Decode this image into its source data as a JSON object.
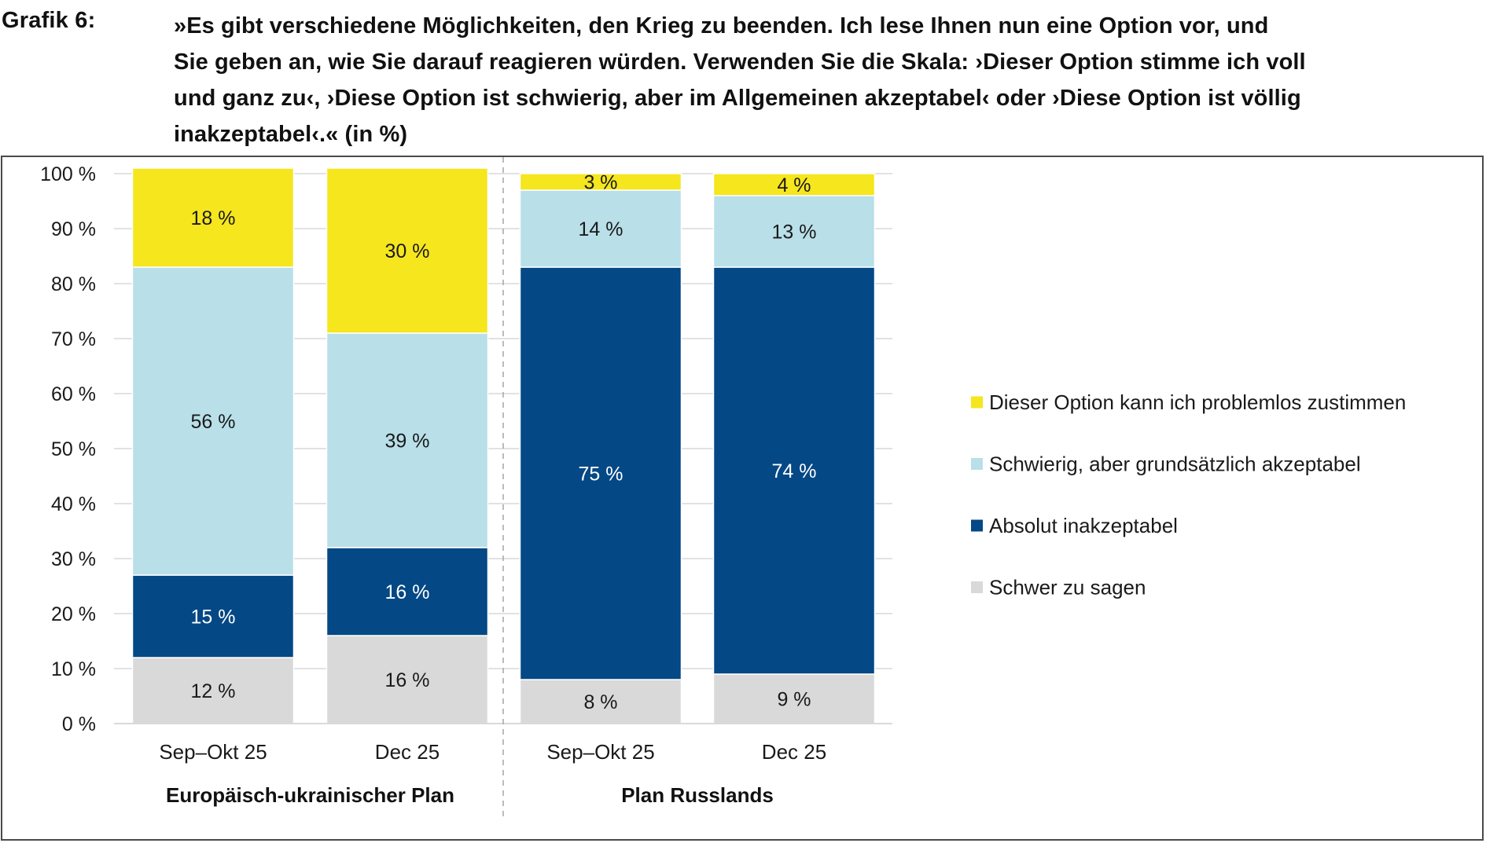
{
  "figure": {
    "label": "Grafik 6:",
    "title_lines": [
      "»Es gibt verschiedene Möglichkeiten, den Krieg zu beenden. Ich lese Ihnen nun eine Option vor, und",
      "Sie geben an, wie Sie darauf reagieren würden. Verwenden Sie die Skala: ›Dieser Option stimme ich voll",
      "und ganz zu‹, ›Diese Option ist schwierig, aber im Allgemeinen akzeptabel‹ oder ›Diese Option ist völlig",
      "inakzeptabel‹.« (in %)"
    ]
  },
  "chart_data": {
    "type": "bar",
    "stacked": true,
    "title": "»Es gibt verschiedene Möglichkeiten, den Krieg zu beenden. Ich lese Ihnen nun eine Option vor, und Sie geben an, wie Sie darauf reagieren würden. Verwenden Sie die Skala: ›Dieser Option stimme ich voll und ganz zu‹, ›Diese Option ist schwierig, aber im Allgemeinen akzeptabel‹ oder ›Diese Option ist völlig inakzeptabel‹.« (in %)",
    "categories": [
      "Sep–Okt 25",
      "Dec 25",
      "Sep–Okt 25",
      "Dec 25"
    ],
    "groups": [
      {
        "label": "Europäisch-ukrainischer Plan",
        "categories": [
          0,
          1
        ]
      },
      {
        "label": "Plan Russlands",
        "categories": [
          2,
          3
        ]
      }
    ],
    "series": [
      {
        "name": "Schwer zu sagen",
        "color": "#d9d9d9",
        "label_color": "#1a1a1a",
        "values": [
          12,
          16,
          8,
          9
        ]
      },
      {
        "name": "Absolut inakzeptabel",
        "color": "#044885",
        "label_color": "#ffffff",
        "values": [
          15,
          16,
          75,
          74
        ]
      },
      {
        "name": "Schwierig, aber grundsätzlich akzeptabel",
        "color": "#b9dfe9",
        "label_color": "#1a1a1a",
        "values": [
          56,
          39,
          14,
          13
        ]
      },
      {
        "name": "Dieser Option kann ich problemlos zustimmen",
        "color": "#f5e61e",
        "label_color": "#1a1a1a",
        "values": [
          18,
          30,
          3,
          4
        ]
      }
    ],
    "segment_labels": [
      [
        "12 %",
        "16 %",
        "8 %",
        "9 %"
      ],
      [
        "15 %",
        "16 %",
        "75 %",
        "74 %"
      ],
      [
        "56 %",
        "39 %",
        "14 %",
        "13 %"
      ],
      [
        "18 %",
        "30 %",
        "3 %",
        "4 %"
      ]
    ],
    "yticks": [
      0,
      10,
      20,
      30,
      40,
      50,
      60,
      70,
      80,
      90,
      100
    ],
    "ytick_labels": [
      "0 %",
      "10 %",
      "20 %",
      "30 %",
      "40 %",
      "50 %",
      "60 %",
      "70 %",
      "80 %",
      "90 %",
      "100 %"
    ],
    "ylim": [
      0,
      100
    ],
    "xlabel": "",
    "ylabel": "",
    "grid": true,
    "gridline_color": "#d9d9d9",
    "divider_color": "#a6a6a6",
    "legend_position": "right",
    "legend_order": [
      3,
      2,
      1,
      0
    ]
  }
}
